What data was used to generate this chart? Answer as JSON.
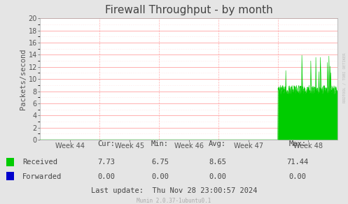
{
  "title": "Firewall Throughput - by month",
  "ylabel": "Packets/second",
  "background_color": "#e5e5e5",
  "plot_bg_color": "#ffffff",
  "grid_color_major": "#ff9999",
  "grid_color_minor": "#ffcccc",
  "ylim": [
    0,
    20
  ],
  "yticks": [
    0,
    2,
    4,
    6,
    8,
    10,
    12,
    14,
    16,
    18,
    20
  ],
  "week_labels": [
    "Week 44",
    "Week 45",
    "Week 46",
    "Week 47",
    "Week 48"
  ],
  "series": {
    "received": {
      "color": "#00cc00",
      "label": "Received",
      "cur": "7.73",
      "min": "6.75",
      "avg": "8.65",
      "max": "71.44"
    },
    "forwarded": {
      "color": "#0000cc",
      "label": "Forwarded",
      "cur": "0.00",
      "min": "0.00",
      "avg": "0.00",
      "max": "0.00"
    }
  },
  "last_update": "Last update:  Thu Nov 28 23:00:57 2024",
  "munin_version": "Munin 2.0.37-1ubuntu0.1",
  "rrdtool_label": "RRDTOOL / TOBI OETIKER",
  "title_fontsize": 11,
  "axis_label_fontsize": 7.5,
  "tick_fontsize": 7,
  "legend_fontsize": 7.5
}
